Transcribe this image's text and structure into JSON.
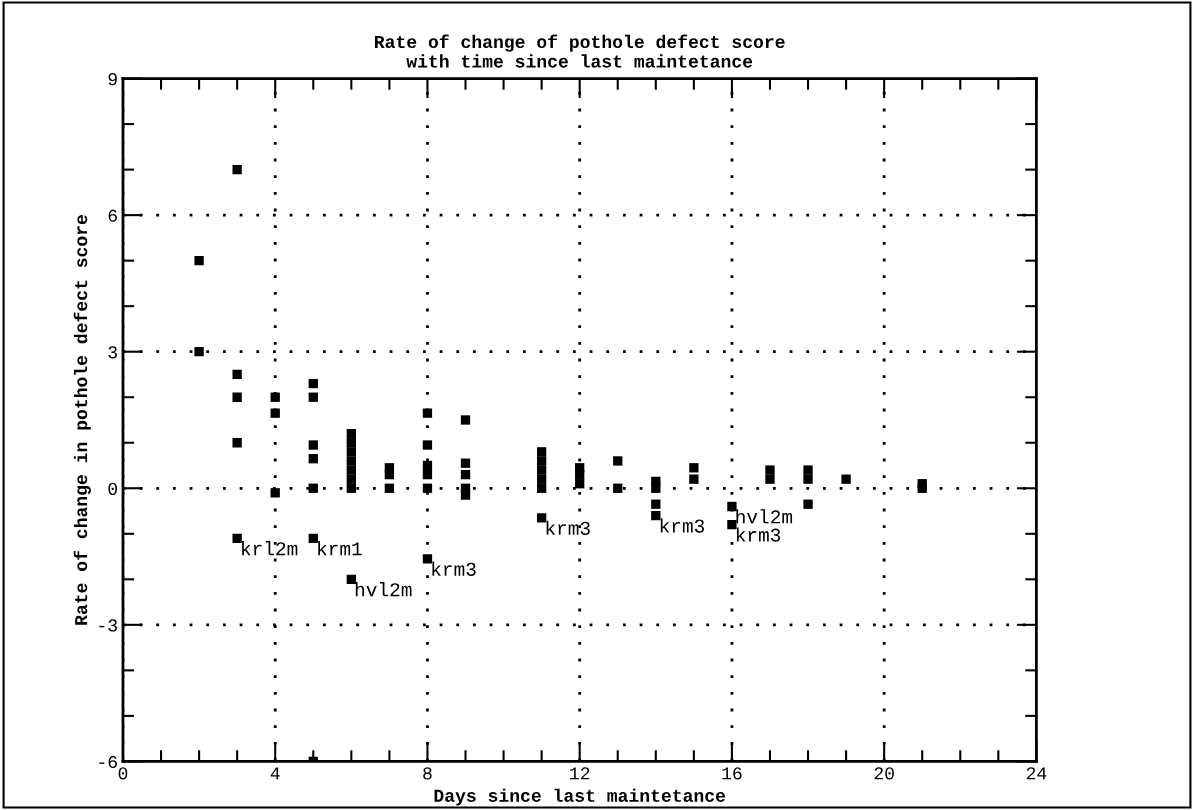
{
  "chart_data": {
    "type": "scatter",
    "title": "Rate of change of pothole defect score\nwith time since last maintetance",
    "xlabel": "Days since last maintetance",
    "ylabel": "Rate of change in pothole defect score",
    "x": [
      2,
      2,
      3,
      3,
      3,
      3,
      3,
      4,
      4,
      4,
      5,
      5,
      5,
      5,
      5,
      5,
      5,
      6,
      6,
      6,
      6,
      6,
      6,
      6,
      6,
      7,
      7,
      7,
      8,
      8,
      8,
      8,
      8,
      8,
      9,
      9,
      9,
      9,
      9,
      11,
      11,
      11,
      11,
      11,
      11,
      12,
      12,
      12,
      13,
      13,
      14,
      14,
      14,
      14,
      15,
      15,
      16,
      16,
      17,
      17,
      18,
      18,
      18,
      19,
      21,
      21
    ],
    "values": [
      5,
      3,
      7,
      2.5,
      2,
      1,
      -1.1,
      2,
      1.65,
      -0.1,
      2.3,
      2,
      0.95,
      0.65,
      0,
      -1.1,
      -6,
      1.2,
      1,
      0.8,
      0.6,
      0.4,
      0.2,
      0,
      -2,
      0.45,
      0.3,
      0,
      1.65,
      0.95,
      0.5,
      0.3,
      0,
      -1.55,
      1.5,
      0.55,
      0.3,
      0,
      -0.15,
      0.8,
      0.6,
      0.4,
      0.2,
      0,
      -0.65,
      0.45,
      0.3,
      0.1,
      0.6,
      0,
      0.15,
      0,
      -0.35,
      -0.6,
      0.45,
      0.2,
      -0.4,
      -0.8,
      0.4,
      0.2,
      0.4,
      0.2,
      -0.35,
      0.2,
      0.1,
      0
    ],
    "color": "#000000",
    "marker": "square",
    "xlim": [
      0,
      24
    ],
    "ylim": [
      -6,
      9
    ],
    "xticks": [
      0,
      {
        "value": 1,
        "label": null
      },
      {
        "value": 2,
        "label": null
      },
      {
        "value": 3,
        "label": null
      },
      4,
      {
        "value": 5,
        "label": null
      },
      {
        "value": 6,
        "label": null
      },
      {
        "value": 7,
        "label": null
      },
      8,
      {
        "value": 9,
        "label": null
      },
      {
        "value": 10,
        "label": null
      },
      {
        "value": 11,
        "label": null
      },
      12,
      {
        "value": 13,
        "label": null
      },
      {
        "value": 14,
        "label": null
      },
      {
        "value": 15,
        "label": null
      },
      16,
      {
        "value": 17,
        "label": null
      },
      {
        "value": 18,
        "label": null
      },
      {
        "value": 19,
        "label": null
      },
      20,
      {
        "value": 21,
        "label": null
      },
      {
        "value": 22,
        "label": null
      },
      {
        "value": 23,
        "label": null
      },
      24
    ],
    "yticks": [
      -6,
      {
        "value": -5,
        "label": null
      },
      {
        "value": -4,
        "label": null
      },
      -3,
      {
        "value": -2,
        "label": null
      },
      {
        "value": -1,
        "label": null
      },
      0,
      {
        "value": 1,
        "label": null
      },
      {
        "value": 2,
        "label": null
      },
      3,
      {
        "value": 4,
        "label": null
      },
      {
        "value": 5,
        "label": null
      },
      6,
      {
        "value": 7,
        "label": null
      },
      {
        "value": 8,
        "label": null
      },
      9
    ],
    "grid": true,
    "annotations": [
      {
        "text": "krl2m",
        "x": 3,
        "y": -1.1
      },
      {
        "text": "krm1",
        "x": 5,
        "y": -1.1
      },
      {
        "text": "hvl2m",
        "x": 6,
        "y": -2
      },
      {
        "text": "krm3",
        "x": 8,
        "y": -1.55
      },
      {
        "text": "krm3",
        "x": 11,
        "y": -0.65
      },
      {
        "text": "krm3",
        "x": 14,
        "y": -0.6
      },
      {
        "text": "hvl2m",
        "x": 16,
        "y": -0.4
      },
      {
        "text": "krm3",
        "x": 16,
        "y": -0.8
      }
    ]
  }
}
